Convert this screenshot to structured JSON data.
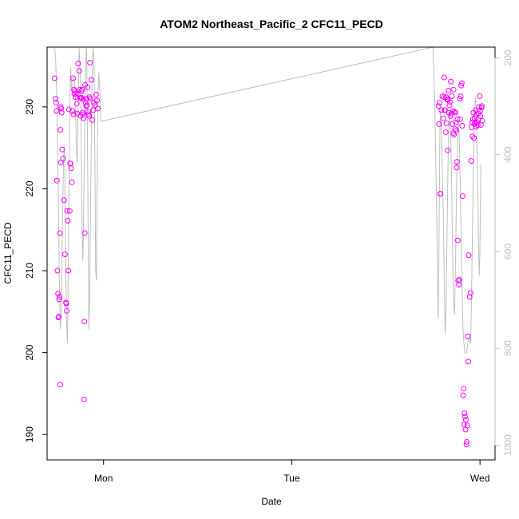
{
  "chart_data": {
    "type": "scatter",
    "title": "ATOM2 Northeast_Pacific_2 CFC11_PECD",
    "xlabel": "Date",
    "ylabel": "CFC11_PECD",
    "x_ticks": [
      "Mon",
      "Tue",
      "Wed"
    ],
    "x_tick_positions": [
      0,
      1,
      2
    ],
    "xlim": [
      -0.3,
      2.08
    ],
    "ylim": [
      186.9,
      237.3
    ],
    "y_ticks": [
      190,
      200,
      210,
      220,
      230
    ],
    "y2_ticks": [
      200,
      400,
      600,
      800,
      1000
    ],
    "y2_lim": [
      1030.5,
      177.9
    ],
    "y2_reversed": true,
    "point_color": "#FF00FF",
    "line_color": "#BEBEBE",
    "legend": "none",
    "grid": false,
    "series": [
      {
        "kind": "points",
        "x": [
          -0.26,
          -0.255,
          -0.252,
          -0.25,
          -0.248,
          -0.245,
          -0.242,
          -0.24,
          -0.238,
          -0.236,
          -0.234,
          -0.232,
          -0.23,
          -0.229,
          -0.228,
          -0.227,
          -0.225,
          -0.223,
          -0.22,
          -0.215,
          -0.21,
          -0.205,
          -0.2,
          -0.198,
          -0.196,
          -0.194,
          -0.19,
          -0.187,
          -0.184,
          -0.18,
          -0.178,
          -0.176,
          -0.172,
          -0.168,
          -0.165,
          -0.162,
          -0.16,
          -0.157,
          -0.155,
          -0.152,
          -0.15,
          -0.145,
          -0.142,
          -0.14,
          -0.135,
          -0.13,
          -0.127,
          -0.125,
          -0.122,
          -0.12,
          -0.118,
          -0.116,
          -0.114,
          -0.112,
          -0.11,
          -0.108,
          -0.106,
          -0.104,
          -0.102,
          -0.1,
          -0.098,
          -0.095,
          -0.092,
          -0.09,
          -0.088,
          -0.085,
          -0.082,
          -0.08,
          -0.077,
          -0.075,
          -0.072,
          -0.07,
          -0.065,
          -0.06,
          -0.055,
          -0.05,
          -0.045,
          -0.04,
          -0.035,
          -0.03,
          1.78,
          1.782,
          1.785,
          1.788,
          1.79,
          1.795,
          1.8,
          1.805,
          1.808,
          1.81,
          1.812,
          1.815,
          1.818,
          1.82,
          1.822,
          1.825,
          1.828,
          1.83,
          1.833,
          1.835,
          1.838,
          1.84,
          1.843,
          1.845,
          1.848,
          1.85,
          1.853,
          1.855,
          1.858,
          1.86,
          1.862,
          1.865,
          1.868,
          1.87,
          1.872,
          1.874,
          1.876,
          1.878,
          1.88,
          1.882,
          1.885,
          1.888,
          1.89,
          1.893,
          1.895,
          1.898,
          1.9,
          1.903,
          1.905,
          1.908,
          1.91,
          1.913,
          1.915,
          1.918,
          1.92,
          1.923,
          1.925,
          1.928,
          1.93,
          1.933,
          1.935,
          1.938,
          1.94,
          1.945,
          1.95,
          1.953,
          1.955,
          1.958,
          1.96,
          1.962,
          1.965,
          1.968,
          1.97,
          1.972,
          1.975,
          1.978,
          1.98,
          1.982,
          1.985,
          1.988,
          1.99,
          1.992,
          1.995,
          1.998,
          2.0,
          2.002,
          2.005,
          2.008,
          2.01,
          2.012
        ],
        "y": [
          233.5,
          231,
          230.5,
          229.5,
          221,
          210,
          207.2,
          204.3,
          204.4,
          206.5,
          206.8,
          214.6,
          196.1,
          227.2,
          230,
          223.2,
          229.8,
          229.3,
          224.8,
          223.7,
          218.6,
          212,
          206.1,
          206,
          205.1,
          217.3,
          216.1,
          210,
          229.7,
          217.3,
          223.1,
          223.1,
          222.5,
          220.8,
          229.5,
          233.5,
          229.1,
          232.1,
          231.6,
          231.9,
          231.2,
          231.6,
          230.4,
          229.2,
          235.3,
          234.4,
          232.1,
          231.1,
          228.9,
          231.1,
          231.9,
          231.1,
          232.1,
          229.3,
          229.1,
          230.9,
          228.6,
          194.3,
          203.8,
          214.6,
          232.7,
          230.5,
          230.1,
          231,
          230.2,
          232.4,
          229.4,
          229.1,
          228.9,
          231.2,
          235.4,
          231,
          233.3,
          228.4,
          229.6,
          230.5,
          230.2,
          231.5,
          230.8,
          229.8,
          230.1,
          227.9,
          230.5,
          219.4,
          219.4,
          229.6,
          231.3,
          228.6,
          231.2,
          233.6,
          229.6,
          229.6,
          226.9,
          231.2,
          228,
          230.9,
          224.7,
          230.9,
          232,
          229.3,
          230.2,
          230.6,
          228.9,
          233.1,
          229.2,
          231.3,
          227.9,
          229.5,
          226.8,
          232.1,
          226.6,
          229.4,
          227.3,
          229.3,
          228.1,
          227.1,
          222.6,
          223.3,
          228.5,
          213.7,
          208.8,
          208.3,
          208.9,
          231,
          228.5,
          231.3,
          232.6,
          232.9,
          227.7,
          219.1,
          194.8,
          195.6,
          191.2,
          192.6,
          192.2,
          190.6,
          191.8,
          188.8,
          189.1,
          191.1,
          202,
          198.9,
          211.9,
          206.8,
          207.3,
          223.4,
          227.5,
          228.1,
          226.4,
          228.5,
          229.3,
          226.2,
          227.9,
          228.6,
          228.1,
          229.6,
          227.6,
          229.1,
          228.1,
          227.8,
          228.4,
          229.2,
          230,
          231.3,
          229.5,
          228.9,
          227.8,
          229.9,
          230.1,
          228.3
        ],
        "note": "approximate"
      },
      {
        "kind": "line",
        "axis": "right",
        "x": [
          -0.26,
          -0.255,
          -0.25,
          -0.245,
          -0.24,
          -0.235,
          -0.23,
          -0.225,
          -0.222,
          -0.219,
          -0.216,
          -0.213,
          -0.21,
          -0.207,
          -0.204,
          -0.2,
          -0.196,
          -0.192,
          -0.189,
          -0.186,
          -0.183,
          -0.18,
          -0.177,
          -0.174,
          -0.17,
          -0.165,
          -0.16,
          -0.155,
          -0.15,
          -0.145,
          -0.14,
          -0.135,
          -0.13,
          -0.126,
          -0.122,
          -0.118,
          -0.114,
          -0.11,
          -0.106,
          -0.102,
          -0.098,
          -0.094,
          -0.09,
          -0.086,
          -0.082,
          -0.078,
          -0.074,
          -0.07,
          -0.066,
          -0.062,
          -0.058,
          -0.054,
          -0.05,
          -0.046,
          -0.042,
          -0.038,
          -0.034,
          -0.03,
          -0.025,
          -0.02,
          -0.015,
          -0.01,
          -0.005,
          0.0,
          1.75,
          1.76,
          1.77,
          1.775,
          1.778,
          1.781,
          1.784,
          1.787,
          1.79,
          1.795,
          1.8,
          1.805,
          1.81,
          1.815,
          1.82,
          1.825,
          1.83,
          1.835,
          1.84,
          1.845,
          1.85,
          1.855,
          1.86,
          1.865,
          1.87,
          1.875,
          1.88,
          1.885,
          1.89,
          1.895,
          1.9,
          1.905,
          1.91,
          1.915,
          1.92,
          1.925,
          1.93,
          1.935,
          1.94,
          1.945,
          1.95,
          1.955,
          1.96,
          1.965,
          1.97,
          1.975,
          1.98,
          1.985,
          1.99,
          1.993,
          1.996,
          1.999,
          2.002,
          2.005
        ],
        "y": [
          180,
          200,
          260,
          360,
          500,
          660,
          760,
          730,
          640,
          560,
          480,
          420,
          380,
          400,
          520,
          660,
          750,
          790,
          690,
          560,
          430,
          320,
          250,
          220,
          270,
          260,
          240,
          250,
          270,
          380,
          420,
          300,
          180,
          210,
          250,
          400,
          560,
          620,
          520,
          400,
          280,
          200,
          180,
          330,
          560,
          760,
          700,
          540,
          390,
          260,
          200,
          180,
          220,
          420,
          640,
          660,
          460,
          280,
          230,
          270,
          330,
          330,
          330,
          330,
          178,
          300,
          520,
          680,
          740,
          650,
          500,
          360,
          310,
          350,
          430,
          520,
          660,
          770,
          720,
          560,
          420,
          330,
          310,
          360,
          480,
          620,
          710,
          730,
          620,
          480,
          380,
          330,
          360,
          460,
          580,
          680,
          760,
          790,
          810,
          810,
          805,
          790,
          780,
          780,
          790,
          700,
          560,
          420,
          330,
          280,
          300,
          400,
          520,
          610,
          650,
          610,
          520,
          420
        ],
        "note": "approximate"
      }
    ]
  }
}
